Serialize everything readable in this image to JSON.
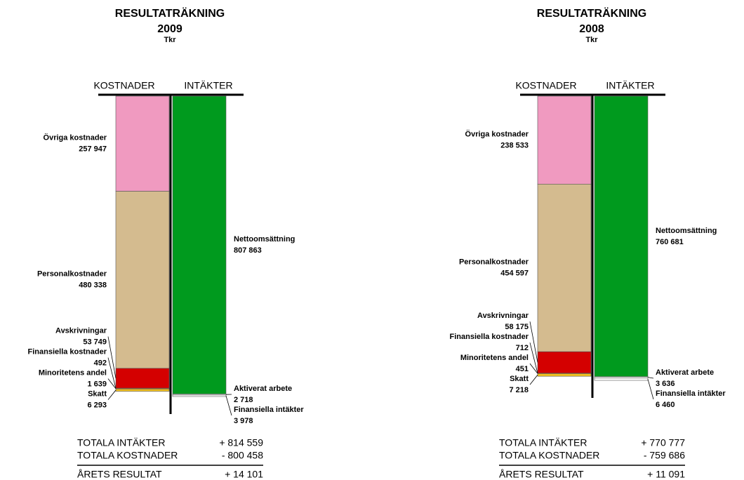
{
  "chart_data": [
    {
      "type": "t-account",
      "title": "RESULTATRÄKNING",
      "subtitle": "2009",
      "unit": "Tkr",
      "series": [
        {
          "name": "KOSTNADER",
          "categories": [
            "Övriga kostnader",
            "Personalkostnader",
            "Avskrivningar",
            "Finansiella kostnader",
            "Minoritetens andel",
            "Skatt"
          ],
          "values": [
            257947,
            480338,
            53749,
            492,
            1639,
            6293
          ],
          "value_labels": [
            "257 947",
            "480 338",
            "53 749",
            "492",
            "1 639",
            "6 293"
          ],
          "colors": [
            "#f09ac0",
            "#d4bb8f",
            "#d40000",
            "#ffffff",
            "#f09020",
            "#f0c020"
          ]
        },
        {
          "name": "INTÄKTER",
          "categories": [
            "Nettoomsättning",
            "Aktiverat arbete",
            "Finansiella intäkter"
          ],
          "values": [
            807863,
            2718,
            3978
          ],
          "value_labels": [
            "807 863",
            "2 718",
            "3 978"
          ],
          "colors": [
            "#009a1e",
            "#ffffff",
            "#ffffff"
          ]
        }
      ],
      "totals": {
        "labels": [
          "TOTALA INTÄKTER",
          "TOTALA KOSTNADER",
          "ÅRETS RESULTAT"
        ],
        "values": [
          814559,
          -800458,
          14101
        ],
        "value_labels": [
          "+ 814 559",
          "- 800 458",
          "+ 14 101"
        ]
      }
    },
    {
      "type": "t-account",
      "title": "RESULTATRÄKNING",
      "subtitle": "2008",
      "unit": "Tkr",
      "series": [
        {
          "name": "KOSTNADER",
          "categories": [
            "Övriga kostnader",
            "Personalkostnader",
            "Avskrivningar",
            "Finansiella kostnader",
            "Minoritetens andel",
            "Skatt"
          ],
          "values": [
            238533,
            454597,
            58175,
            712,
            451,
            7218
          ],
          "value_labels": [
            "238 533",
            "454 597",
            "58 175",
            "712",
            "451",
            "7 218"
          ],
          "colors": [
            "#f09ac0",
            "#d4bb8f",
            "#d40000",
            "#ffffff",
            "#f09020",
            "#f0c020"
          ]
        },
        {
          "name": "INTÄKTER",
          "categories": [
            "Nettoomsättning",
            "Aktiverat arbete",
            "Finansiella intäkter"
          ],
          "values": [
            760681,
            3636,
            6460
          ],
          "value_labels": [
            "760 681",
            "3 636",
            "6 460"
          ],
          "colors": [
            "#009a1e",
            "#ffffff",
            "#ffffff"
          ]
        }
      ],
      "totals": {
        "labels": [
          "TOTALA INTÄKTER",
          "TOTALA KOSTNADER",
          "ÅRETS RESULTAT"
        ],
        "values": [
          770777,
          -759686,
          11091
        ],
        "value_labels": [
          "+ 770 777",
          "- 759 686",
          "+ 11 091"
        ]
      }
    }
  ]
}
